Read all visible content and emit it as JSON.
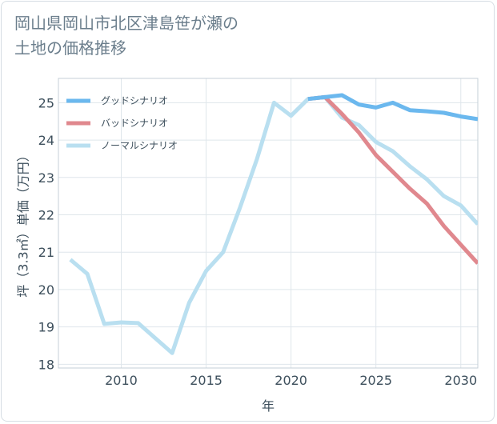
{
  "title": {
    "line1": "岡山県岡山市北区津島笹が瀬の",
    "line2": "土地の価格推移"
  },
  "chart_data": {
    "type": "line",
    "xlabel": "年",
    "ylabel": "坪（3.3㎡）単価（万円）",
    "xlim": [
      2006.3,
      2031
    ],
    "ylim": [
      17.9,
      25.65
    ],
    "xticks": [
      2010,
      2015,
      2020,
      2025,
      2030
    ],
    "yticks": [
      18,
      19,
      20,
      21,
      22,
      23,
      24,
      25
    ],
    "grid": true,
    "legend_position": "top-left",
    "series": [
      {
        "name": "グッドシナリオ",
        "color": "#6bb8ee",
        "x": [
          2021,
          2022,
          2023,
          2024,
          2025,
          2026,
          2027,
          2028,
          2029,
          2030,
          2031
        ],
        "y": [
          25.1,
          25.15,
          25.2,
          24.95,
          24.87,
          25.0,
          24.8,
          24.77,
          24.73,
          24.63,
          24.56
        ]
      },
      {
        "name": "バッドシナリオ",
        "color": "#e0888e",
        "x": [
          2021,
          2022,
          2023,
          2024,
          2025,
          2026,
          2027,
          2028,
          2029,
          2030,
          2031
        ],
        "y": [
          25.1,
          25.15,
          24.7,
          24.2,
          23.6,
          23.15,
          22.7,
          22.3,
          21.7,
          21.2,
          20.7
        ]
      },
      {
        "name": "ノーマルシナリオ",
        "color": "#b9dff0",
        "x": [
          2007,
          2008,
          2009,
          2010,
          2011,
          2012,
          2013,
          2014,
          2015,
          2016,
          2017,
          2018,
          2019,
          2020,
          2021,
          2022,
          2023,
          2024,
          2025,
          2026,
          2027,
          2028,
          2029,
          2030,
          2031
        ],
        "y": [
          20.8,
          20.42,
          19.08,
          19.12,
          19.1,
          18.7,
          18.3,
          19.65,
          20.5,
          21.0,
          22.2,
          23.5,
          25.0,
          24.65,
          25.1,
          25.15,
          24.6,
          24.4,
          23.95,
          23.7,
          23.3,
          22.95,
          22.5,
          22.25,
          21.75
        ]
      }
    ]
  }
}
